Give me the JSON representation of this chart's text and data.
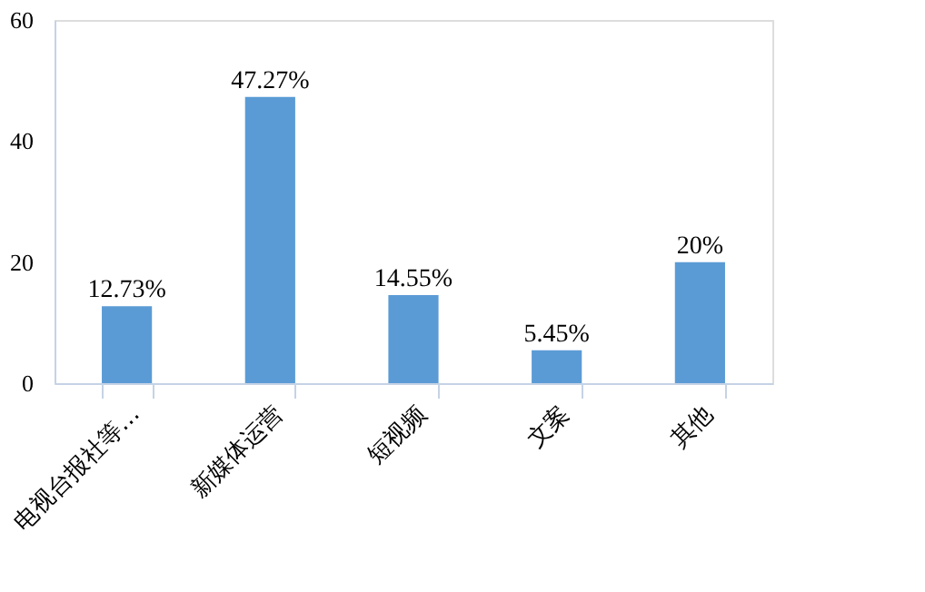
{
  "chart_data": {
    "type": "bar",
    "categories": [
      "电视台报社等…",
      "新媒体运营",
      "短视频",
      "文案",
      "其他"
    ],
    "values": [
      12.73,
      47.27,
      14.55,
      5.45,
      20
    ],
    "value_labels": [
      "12.73%",
      "47.27%",
      "14.55%",
      "5.45%",
      "20%"
    ],
    "color": "#5b9bd5",
    "ylim": [
      0,
      60
    ],
    "yticks": [
      0,
      20,
      40,
      60
    ],
    "grid": false
  }
}
